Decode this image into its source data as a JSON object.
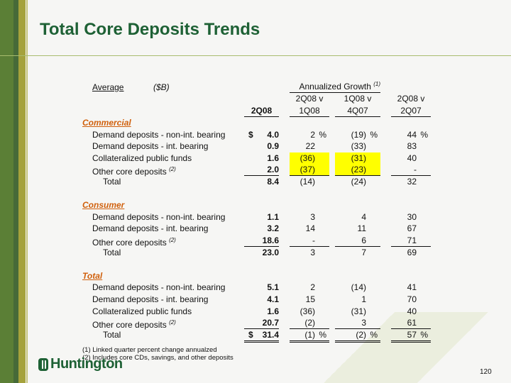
{
  "title": "Total Core Deposits Trends",
  "average_label": "Average",
  "unit_label": "($B)",
  "annualized_growth": "Annualized Growth",
  "annualized_note": "(1)",
  "headers": {
    "c1": [
      "",
      "2Q08"
    ],
    "c2": [
      "2Q08 v",
      "1Q08"
    ],
    "c3": [
      "1Q08 v",
      "4Q07"
    ],
    "c4": [
      "2Q08 v",
      "2Q07"
    ]
  },
  "colors": {
    "title": "#1e6135",
    "category": "#d0600c",
    "highlight": "#ffff00"
  },
  "sections": [
    {
      "name": "Commercial",
      "rows": [
        {
          "label": "Demand deposits - non-int. bearing",
          "note": "",
          "v": "4.0",
          "dollar": true,
          "g1": "2",
          "g2": "(19)",
          "g3": "44",
          "pct": true
        },
        {
          "label": "Demand deposits - int. bearing",
          "note": "",
          "v": "0.9",
          "g1": "22",
          "g2": "(33)",
          "g3": "83"
        },
        {
          "label": "Collateralized public funds",
          "note": "",
          "v": "1.6",
          "g1": "(36)",
          "g2": "(31)",
          "g3": "40",
          "highlight": true
        },
        {
          "label": "Other core deposits",
          "note": "(2)",
          "v": "2.0",
          "g1": "(37)",
          "g2": "(23)",
          "g3": "-",
          "highlight": true,
          "underline": true
        },
        {
          "label": "Total",
          "total": true,
          "v": "8.4",
          "g1": "(14)",
          "g2": "(24)",
          "g3": "32"
        }
      ]
    },
    {
      "name": "Consumer",
      "rows": [
        {
          "label": "Demand deposits - non-int. bearing",
          "v": "1.1",
          "g1": "3",
          "g2": "4",
          "g3": "30"
        },
        {
          "label": "Demand deposits - int. bearing",
          "v": "3.2",
          "g1": "14",
          "g2": "11",
          "g3": "67"
        },
        {
          "label": "Other core deposits",
          "note": "(2)",
          "v": "18.6",
          "g1": "-",
          "g2": "6",
          "g3": "71",
          "underline": true
        },
        {
          "label": "Total",
          "total": true,
          "v": "23.0",
          "g1": "3",
          "g2": "7",
          "g3": "69"
        }
      ]
    },
    {
      "name": "Total",
      "rows": [
        {
          "label": "Demand deposits - non-int. bearing",
          "v": "5.1",
          "g1": "2",
          "g2": "(14)",
          "g3": "41"
        },
        {
          "label": "Demand deposits - int. bearing",
          "v": "4.1",
          "g1": "15",
          "g2": "1",
          "g3": "70"
        },
        {
          "label": "Collateralized public funds",
          "v": "1.6",
          "g1": "(36)",
          "g2": "(31)",
          "g3": "40"
        },
        {
          "label": "Other core deposits",
          "note": "(2)",
          "v": "20.7",
          "g1": "(2)",
          "g2": "3",
          "g3": "61",
          "underline": true
        },
        {
          "label": "Total",
          "total": true,
          "v": "31.4",
          "dollar": true,
          "g1": "(1)",
          "g2": "(2)",
          "g3": "57",
          "pct": true,
          "double": true
        }
      ]
    }
  ],
  "footnotes": [
    "(1)  Linked quarter percent change annualzed",
    "(2)  Includes core CDs, savings, and other deposits"
  ],
  "logo": "Huntington",
  "page_number": "120"
}
